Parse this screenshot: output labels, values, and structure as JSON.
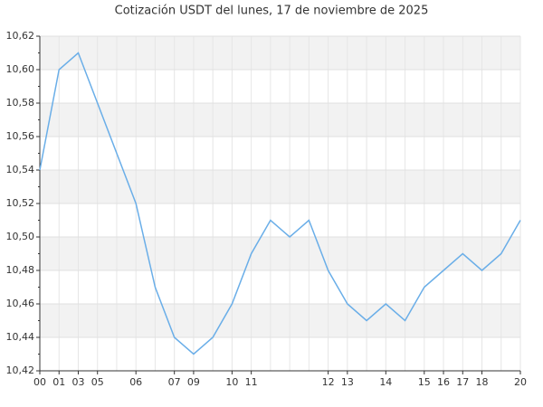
{
  "chart_data": {
    "type": "line",
    "title": "Cotización USDT del lunes, 17 de noviembre de 2025",
    "categories": [
      "00",
      "01",
      "03",
      "05",
      null,
      "06",
      null,
      "07",
      "09",
      null,
      "10",
      "11",
      null,
      null,
      null,
      "12",
      "13",
      null,
      "14",
      null,
      "15",
      "16",
      "17",
      "18",
      null,
      "20"
    ],
    "series": [
      {
        "name": "USDT",
        "color": "#6aaee8",
        "values": [
          10.54,
          10.6,
          10.61,
          10.58,
          10.55,
          10.52,
          10.47,
          10.44,
          10.43,
          10.44,
          10.46,
          10.49,
          10.51,
          10.5,
          10.51,
          10.48,
          10.46,
          10.45,
          10.46,
          10.45,
          10.47,
          10.48,
          10.49,
          10.48,
          10.49,
          10.51
        ]
      }
    ],
    "ylim": [
      10.42,
      10.62
    ],
    "yticks": [
      {
        "value": 10.42,
        "label": "10,42"
      },
      {
        "value": 10.44,
        "label": "10,44"
      },
      {
        "value": 10.46,
        "label": "10,46"
      },
      {
        "value": 10.48,
        "label": "10,48"
      },
      {
        "value": 10.5,
        "label": "10,50"
      },
      {
        "value": 10.52,
        "label": "10,52"
      },
      {
        "value": 10.54,
        "label": "10,54"
      },
      {
        "value": 10.56,
        "label": "10,56"
      },
      {
        "value": 10.58,
        "label": "10,58"
      },
      {
        "value": 10.6,
        "label": "10,60"
      },
      {
        "value": 10.62,
        "label": "10,62"
      }
    ],
    "grid": true
  }
}
